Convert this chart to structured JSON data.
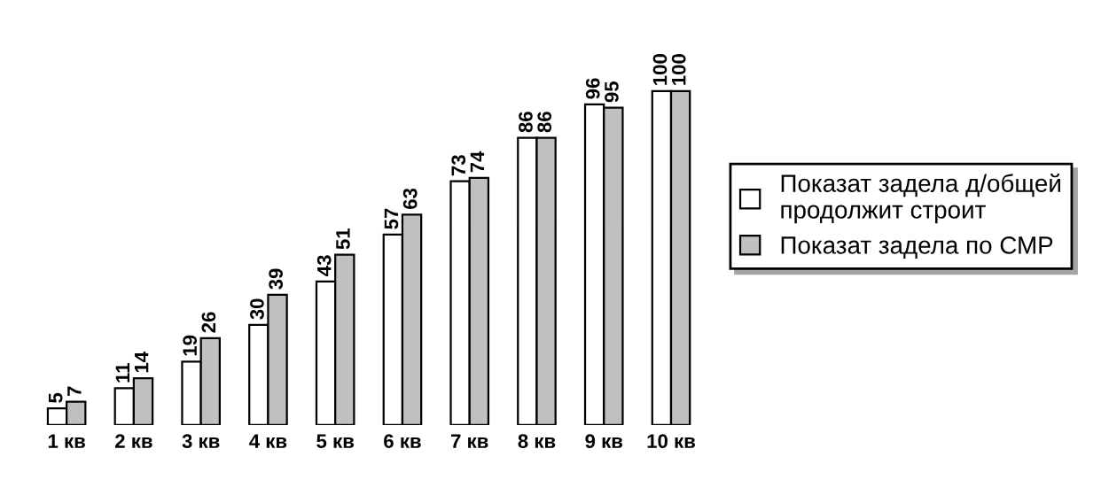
{
  "chart_data": {
    "type": "bar",
    "categories": [
      "1 кв",
      "2 кв",
      "3 кв",
      "4 кв",
      "5 кв",
      "6 кв",
      "7 кв",
      "8 кв",
      "9 кв",
      "10 кв"
    ],
    "series": [
      {
        "name": "Показат задела д/общей\nпродолжит строит",
        "color": "#ffffff",
        "values": [
          5,
          11,
          19,
          30,
          43,
          57,
          73,
          86,
          96,
          100
        ]
      },
      {
        "name": "Показат задела по СМР",
        "color": "#c0c0c0",
        "values": [
          7,
          14,
          26,
          39,
          51,
          63,
          74,
          86,
          95,
          100
        ]
      }
    ],
    "data_labels": true,
    "legend": "right",
    "grid": false
  }
}
